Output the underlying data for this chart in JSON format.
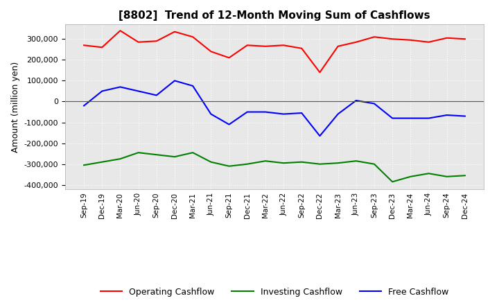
{
  "title": "[8802]  Trend of 12-Month Moving Sum of Cashflows",
  "ylabel": "Amount (million yen)",
  "ylim": [
    -420000,
    370000
  ],
  "yticks": [
    -400000,
    -300000,
    -200000,
    -100000,
    0,
    100000,
    200000,
    300000
  ],
  "background_color": "#ffffff",
  "plot_bg_color": "#e8e8e8",
  "grid_color": "#ffffff",
  "x_labels": [
    "Sep-19",
    "Dec-19",
    "Mar-20",
    "Jun-20",
    "Sep-20",
    "Dec-20",
    "Mar-21",
    "Jun-21",
    "Sep-21",
    "Dec-21",
    "Mar-22",
    "Jun-22",
    "Sep-22",
    "Dec-22",
    "Mar-23",
    "Jun-23",
    "Sep-23",
    "Dec-23",
    "Mar-24",
    "Jun-24",
    "Sep-24",
    "Dec-24"
  ],
  "operating_cashflow": [
    270000,
    260000,
    340000,
    285000,
    290000,
    335000,
    310000,
    240000,
    210000,
    270000,
    265000,
    270000,
    255000,
    140000,
    265000,
    285000,
    310000,
    300000,
    295000,
    285000,
    305000,
    300000
  ],
  "investing_cashflow": [
    -305000,
    -290000,
    -275000,
    -245000,
    -255000,
    -265000,
    -245000,
    -290000,
    -310000,
    -300000,
    -285000,
    -295000,
    -290000,
    -300000,
    -295000,
    -285000,
    -300000,
    -385000,
    -360000,
    -345000,
    -360000,
    -355000
  ],
  "free_cashflow": [
    -20000,
    50000,
    70000,
    50000,
    30000,
    100000,
    75000,
    -60000,
    -110000,
    -50000,
    -50000,
    -60000,
    -55000,
    -165000,
    -60000,
    5000,
    -10000,
    -80000,
    -80000,
    -80000,
    -65000,
    -70000
  ],
  "operating_color": "#ff0000",
  "investing_color": "#008000",
  "free_color": "#0000ff",
  "line_width": 1.5
}
